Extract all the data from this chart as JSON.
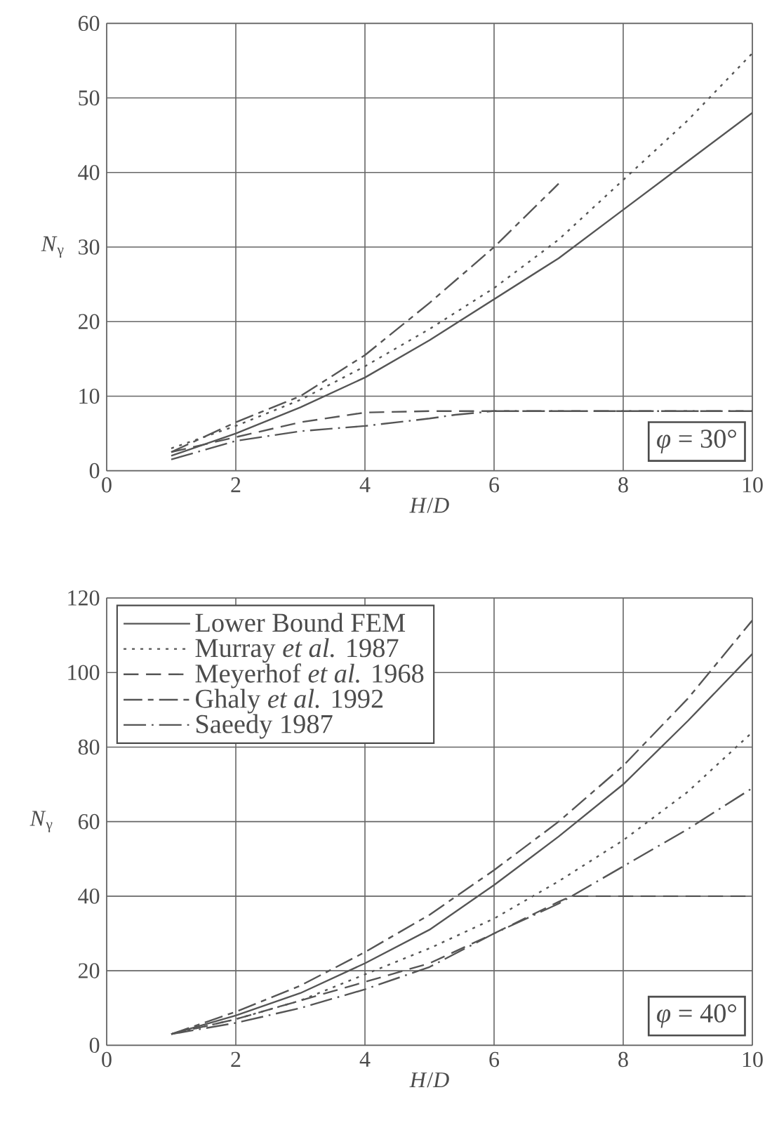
{
  "chart_data": [
    {
      "type": "line",
      "xlabel": "*H*/*D*",
      "ylabel": "*N*$_{γ}$",
      "xlim": [
        0,
        10
      ],
      "ylim": [
        0,
        60
      ],
      "xticks": [
        0,
        2,
        4,
        6,
        8,
        10
      ],
      "yticks": [
        0,
        10,
        20,
        30,
        40,
        50,
        60
      ],
      "grid": true,
      "annotations": [
        "*φ* = 30°"
      ],
      "series": [
        {
          "color": "#555555",
          "line_style": "solid",
          "x": [
            1,
            2,
            3,
            4,
            5,
            6,
            7,
            8,
            9,
            10
          ],
          "values": [
            2,
            5,
            8.5,
            12.5,
            17.5,
            23,
            28.5,
            35,
            41.5,
            48
          ]
        },
        {
          "color": "#555555",
          "line_style": "dotted",
          "x": [
            1,
            2,
            3,
            4,
            5,
            6,
            7,
            8,
            9,
            10
          ],
          "values": [
            3,
            6,
            9.5,
            14,
            19,
            24.5,
            31,
            39,
            47,
            56
          ]
        },
        {
          "color": "#555555",
          "line_style": "dashed",
          "x": [
            1,
            2,
            3,
            4,
            5,
            6,
            8,
            10
          ],
          "values": [
            2.5,
            4.5,
            6.5,
            7.8,
            8,
            8,
            8,
            8
          ]
        },
        {
          "color": "#555555",
          "line_style": "dash-dot",
          "x": [
            1,
            2,
            3,
            4,
            5,
            6,
            7
          ],
          "values": [
            2.5,
            6.5,
            10,
            15.5,
            22.5,
            30,
            38.5
          ]
        },
        {
          "color": "#555555",
          "line_style": "long-dash-dot",
          "x": [
            1,
            2,
            3,
            4,
            5,
            5.4,
            6,
            8,
            10
          ],
          "values": [
            1.5,
            4,
            5.3,
            6,
            7,
            7.5,
            8,
            8,
            8
          ]
        }
      ]
    },
    {
      "type": "line",
      "xlabel": "*H*/*D*",
      "ylabel": "*N*$_{γ}$",
      "xlim": [
        0,
        10
      ],
      "ylim": [
        0,
        120
      ],
      "xticks": [
        0,
        2,
        4,
        6,
        8,
        10
      ],
      "yticks": [
        0,
        20,
        40,
        60,
        80,
        100,
        120
      ],
      "grid": true,
      "legend": "top left",
      "annotations": [
        "*φ* = 40°"
      ],
      "series": [
        {
          "name": "Lower Bound FEM",
          "color": "#555555",
          "line_style": "solid",
          "x": [
            1,
            2,
            3,
            4,
            5,
            6,
            7,
            8,
            9,
            10
          ],
          "values": [
            3,
            8,
            14,
            22,
            31,
            43,
            56,
            70,
            87,
            105
          ]
        },
        {
          "name": "Murray *et al.* 1987",
          "color": "#555555",
          "line_style": "dotted",
          "x": [
            1,
            2,
            3,
            4,
            5,
            6,
            7,
            8,
            9,
            10
          ],
          "values": [
            3,
            7,
            12,
            19,
            26,
            34,
            44,
            55,
            68,
            84
          ]
        },
        {
          "name": "Meyerhof *et al.* 1968",
          "color": "#555555",
          "line_style": "dashed",
          "x": [
            1,
            2,
            3,
            4,
            5,
            6,
            7,
            7.2,
            8,
            10
          ],
          "values": [
            3,
            7,
            12,
            17,
            22,
            30,
            38.5,
            40,
            40,
            40
          ]
        },
        {
          "name": "Ghaly *et al.* 1992",
          "color": "#555555",
          "line_style": "dash-dot",
          "x": [
            1,
            2,
            3,
            4,
            5,
            6,
            7,
            8,
            9,
            10
          ],
          "values": [
            3,
            9,
            16,
            25,
            35,
            47,
            60,
            75,
            93,
            114
          ]
        },
        {
          "name": "Saeedy 1987",
          "color": "#555555",
          "line_style": "long-dash-dot",
          "x": [
            1,
            2,
            3,
            4,
            5,
            6,
            7,
            8,
            9,
            10
          ],
          "values": [
            3,
            6,
            10,
            15,
            21,
            30,
            38,
            48,
            58,
            69
          ]
        }
      ]
    }
  ]
}
